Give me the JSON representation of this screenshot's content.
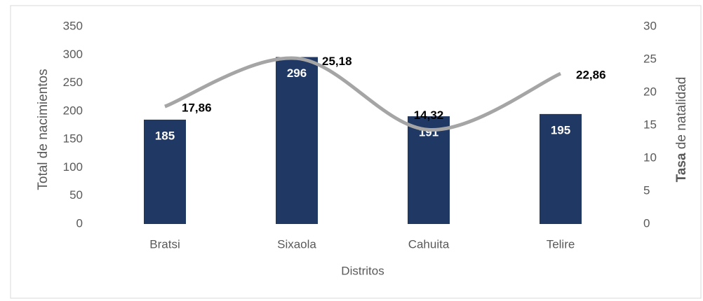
{
  "chart_data": {
    "type": "bar",
    "categories": [
      "Bratsi",
      "Sixaola",
      "Cahuita",
      "Telire"
    ],
    "series": [
      {
        "name": "Total de nacimientos",
        "type": "bar",
        "color": "#203864",
        "values": [
          185,
          296,
          191,
          195
        ]
      },
      {
        "name": "Tasa de natalidad",
        "type": "line",
        "axis": "y2",
        "color": "#a5a5a5",
        "values": [
          17.86,
          25.18,
          14.32,
          22.86
        ],
        "value_labels": [
          "17,86",
          "25,18",
          "14,32",
          "22,86"
        ]
      }
    ],
    "xlabel": "Distritos",
    "ylabel": "Total de nacimientos",
    "y2label": "Tasa de natalidad",
    "ylim": [
      0,
      350
    ],
    "yticks": [
      0,
      50,
      100,
      150,
      200,
      250,
      300,
      350
    ],
    "y2lim": [
      0,
      30
    ],
    "y2ticks": [
      0,
      5,
      10,
      15,
      20,
      25,
      30
    ]
  }
}
